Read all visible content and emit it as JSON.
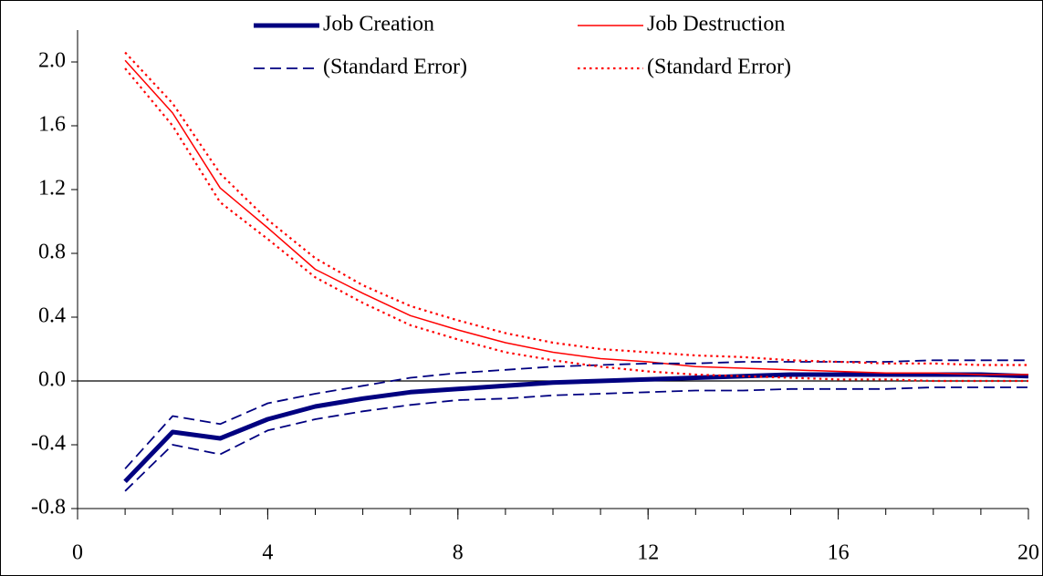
{
  "chart_data": {
    "type": "line",
    "x": [
      1,
      2,
      3,
      4,
      5,
      6,
      7,
      8,
      9,
      10,
      11,
      12,
      13,
      14,
      15,
      16,
      17,
      18,
      19,
      20
    ],
    "series": [
      {
        "name": "Job Creation",
        "color": "#000080",
        "line_style": "bold",
        "values": [
          -0.63,
          -0.32,
          -0.36,
          -0.24,
          -0.16,
          -0.11,
          -0.07,
          -0.05,
          -0.03,
          -0.01,
          0.0,
          0.01,
          0.02,
          0.03,
          0.04,
          0.04,
          0.04,
          0.04,
          0.04,
          0.03
        ]
      },
      {
        "name": "Job Destruction",
        "color": "#ff0000",
        "line_style": "solid",
        "values": [
          2.01,
          1.68,
          1.21,
          0.96,
          0.7,
          0.55,
          0.41,
          0.32,
          0.24,
          0.18,
          0.14,
          0.12,
          0.09,
          0.08,
          0.07,
          0.06,
          0.05,
          0.05,
          0.04,
          0.04
        ]
      },
      {
        "name": "(Standard Error)",
        "color": "#000080",
        "line_style": "dashed",
        "upper": [
          -0.55,
          -0.22,
          -0.27,
          -0.14,
          -0.08,
          -0.03,
          0.02,
          0.05,
          0.07,
          0.09,
          0.1,
          0.11,
          0.11,
          0.12,
          0.12,
          0.12,
          0.12,
          0.13,
          0.13,
          0.13
        ],
        "lower": [
          -0.69,
          -0.4,
          -0.46,
          -0.31,
          -0.24,
          -0.19,
          -0.15,
          -0.12,
          -0.11,
          -0.09,
          -0.08,
          -0.07,
          -0.06,
          -0.06,
          -0.05,
          -0.05,
          -0.05,
          -0.04,
          -0.04,
          -0.04
        ]
      },
      {
        "name": "(Standard Error)",
        "color": "#ff0000",
        "line_style": "dotted",
        "upper": [
          2.06,
          1.74,
          1.3,
          1.01,
          0.77,
          0.6,
          0.47,
          0.38,
          0.3,
          0.24,
          0.2,
          0.18,
          0.16,
          0.15,
          0.13,
          0.12,
          0.11,
          0.11,
          0.1,
          0.1
        ],
        "lower": [
          1.96,
          1.6,
          1.12,
          0.89,
          0.65,
          0.49,
          0.35,
          0.26,
          0.18,
          0.13,
          0.09,
          0.06,
          0.04,
          0.03,
          0.02,
          0.01,
          0.01,
          0.0,
          0.0,
          0.0
        ]
      }
    ],
    "xlim": [
      0,
      20
    ],
    "xticks": [
      0,
      4,
      8,
      12,
      16,
      20
    ],
    "ylim": [
      -0.8,
      2.2
    ],
    "yticks": [
      -0.8,
      -0.4,
      {
        "value": 0,
        "label": "0.0"
      },
      0.4,
      0.8,
      1.2,
      1.6,
      {
        "value": 2,
        "label": "2.0"
      }
    ]
  }
}
